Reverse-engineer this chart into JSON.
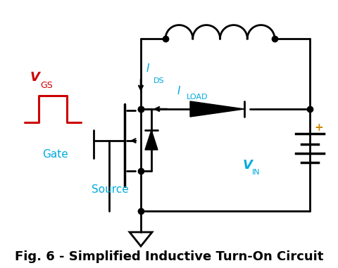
{
  "title": "Fig. 6 - Simplified Inductive Turn-On Circuit",
  "title_fontsize": 13,
  "background_color": "#ffffff",
  "line_color": "#000000",
  "cyan_color": "#00aadd",
  "red_color": "#cc0000",
  "label_gate": "Gate",
  "label_source": "Source",
  "label_ids": "I",
  "label_ids_sub": "DS",
  "label_iload": "I",
  "label_iload_sub": "LOAD",
  "label_vin": "V",
  "label_vin_sub": "IN",
  "label_vgs": "V",
  "label_vgs_sub": "GS",
  "figw": 4.81,
  "figh": 3.81,
  "dpi": 100
}
